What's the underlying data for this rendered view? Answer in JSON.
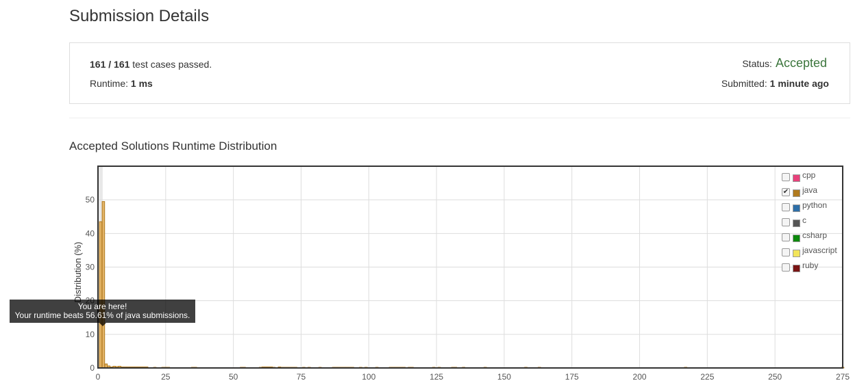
{
  "page": {
    "title": "Submission Details",
    "section_title": "Accepted Solutions Runtime Distribution"
  },
  "details": {
    "passed": "161",
    "separator": " / ",
    "total": "161",
    "cases_suffix": " test cases passed.",
    "runtime_label": "Runtime: ",
    "runtime_value": "1 ms",
    "status_label": "Status:",
    "status_value": "Accepted",
    "submitted_label": "Submitted: ",
    "submitted_value": "1 minute ago",
    "status_color": "#3c763d"
  },
  "legend": {
    "items": [
      {
        "label": "cpp",
        "color": "#e8417b",
        "checked": false
      },
      {
        "label": "java",
        "color": "#b07a1e",
        "checked": true
      },
      {
        "label": "python",
        "color": "#2e6fa8",
        "checked": false
      },
      {
        "label": "c",
        "color": "#555555",
        "checked": false
      },
      {
        "label": "csharp",
        "color": "#0c8a0c",
        "checked": false
      },
      {
        "label": "javascript",
        "color": "#f2e45a",
        "checked": false
      },
      {
        "label": "ruby",
        "color": "#7a1414",
        "checked": false
      }
    ]
  },
  "tooltip": {
    "line1": "You are here!",
    "line2": "Your runtime beats 56.61% of java submissions."
  },
  "chart_data": {
    "type": "bar",
    "ylabel": "Distribution (%)",
    "xlim": [
      0,
      275
    ],
    "ylim": [
      0,
      60
    ],
    "xticks": [
      0,
      25,
      50,
      75,
      100,
      125,
      150,
      175,
      200,
      225,
      250,
      275
    ],
    "yticks": [
      0,
      10,
      20,
      30,
      40,
      50
    ],
    "highlight_x": 1,
    "series": [
      {
        "name": "java",
        "color": "#b07a1e",
        "x": [
          1,
          2,
          3,
          4,
          5,
          6,
          7,
          8,
          9,
          10,
          11,
          12,
          13,
          14,
          15,
          16,
          17,
          18,
          21,
          24,
          25,
          26,
          35,
          36,
          53,
          54,
          60,
          61,
          62,
          63,
          64,
          65,
          67,
          68,
          69,
          70,
          71,
          72,
          73,
          76,
          78,
          82,
          87,
          88,
          89,
          90,
          91,
          92,
          93,
          94,
          97,
          99,
          103,
          108,
          109,
          110,
          111,
          112,
          113,
          115,
          116,
          124,
          126,
          131,
          132,
          135,
          143,
          158,
          163,
          217,
          275
        ],
        "values": [
          43.5,
          49.5,
          1.2,
          0.6,
          0.3,
          0.5,
          0.4,
          0.5,
          0.3,
          0.3,
          0.3,
          0.3,
          0.3,
          0.3,
          0.3,
          0.3,
          0.3,
          0.3,
          0.2,
          0.2,
          0.2,
          0.2,
          0.2,
          0.2,
          0.2,
          0.2,
          0.2,
          0.3,
          0.3,
          0.3,
          0.3,
          0.2,
          0.3,
          0.2,
          0.2,
          0.2,
          0.2,
          0.2,
          0.2,
          0.2,
          0.2,
          0.2,
          0.2,
          0.2,
          0.2,
          0.2,
          0.2,
          0.2,
          0.2,
          0.2,
          0.2,
          0.2,
          0.2,
          0.2,
          0.2,
          0.2,
          0.2,
          0.2,
          0.2,
          0.2,
          0.2,
          0.2,
          0.2,
          0.2,
          0.2,
          0.2,
          0.2,
          0.2,
          0.2,
          0.2,
          0.2
        ]
      }
    ],
    "grid": true,
    "legend_position": "top-right"
  }
}
